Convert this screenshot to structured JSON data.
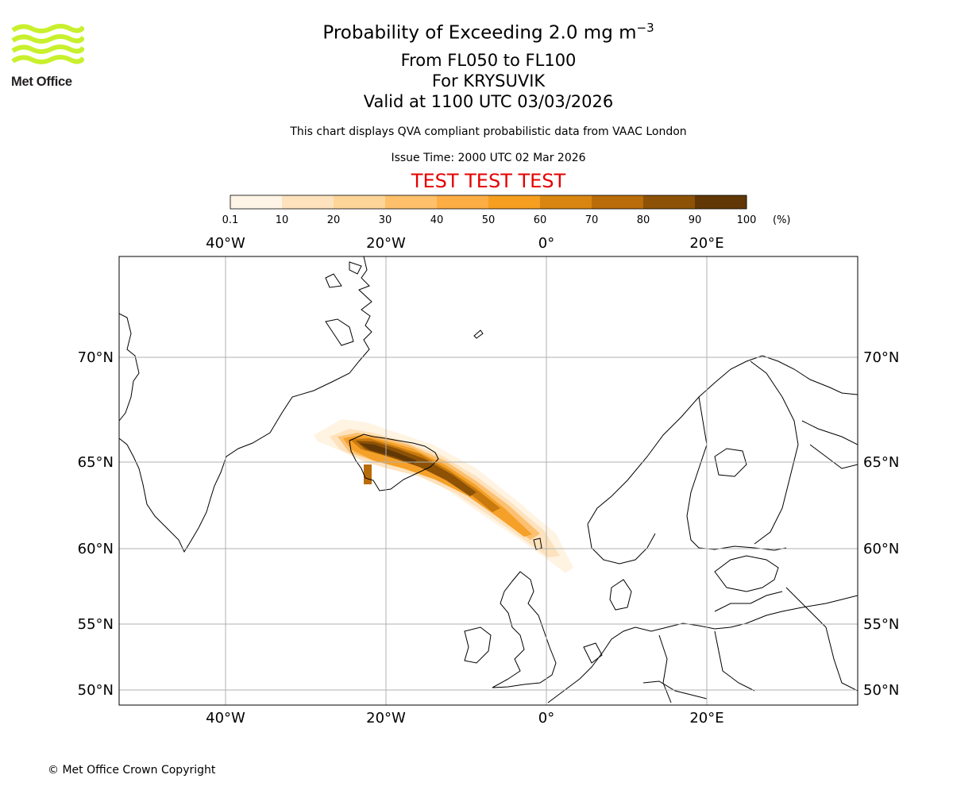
{
  "logo": {
    "text": "Met Office",
    "colors": {
      "waves": "#c8f02d",
      "text": "#231f20"
    }
  },
  "title": {
    "main": "Probability of Exceeding 2.0 mg m",
    "main_exponent": "−3",
    "layer": "From FL050 to FL100",
    "volcano": "For KRYSUVIK",
    "valid": "Valid at 1100 UTC 03/03/2026"
  },
  "subtitle": {
    "description": "This chart displays QVA compliant probabilistic data from VAAC London",
    "issue_time": "Issue Time: 2000 UTC 02 Mar 2026"
  },
  "banner": {
    "text": "TEST TEST TEST",
    "color": "#e60000"
  },
  "colorbar": {
    "unit": "(%)",
    "ticks": [
      "0.1",
      "10",
      "20",
      "30",
      "40",
      "50",
      "60",
      "70",
      "80",
      "90",
      "100"
    ],
    "colors": [
      "#fff5e6",
      "#fee2bd",
      "#fed598",
      "#fec06a",
      "#fcae45",
      "#f59e20",
      "#d88611",
      "#b96c0a",
      "#8d5206",
      "#613805"
    ]
  },
  "map": {
    "lon_labels": [
      "40°W",
      "20°W",
      "0°",
      "20°E"
    ],
    "lat_labels": [
      "70°N",
      "65°N",
      "60°N",
      "55°N",
      "50°N"
    ],
    "gridline_color": "#b0b0b0"
  },
  "footer": {
    "copyright": "© Met Office Crown Copyright"
  }
}
